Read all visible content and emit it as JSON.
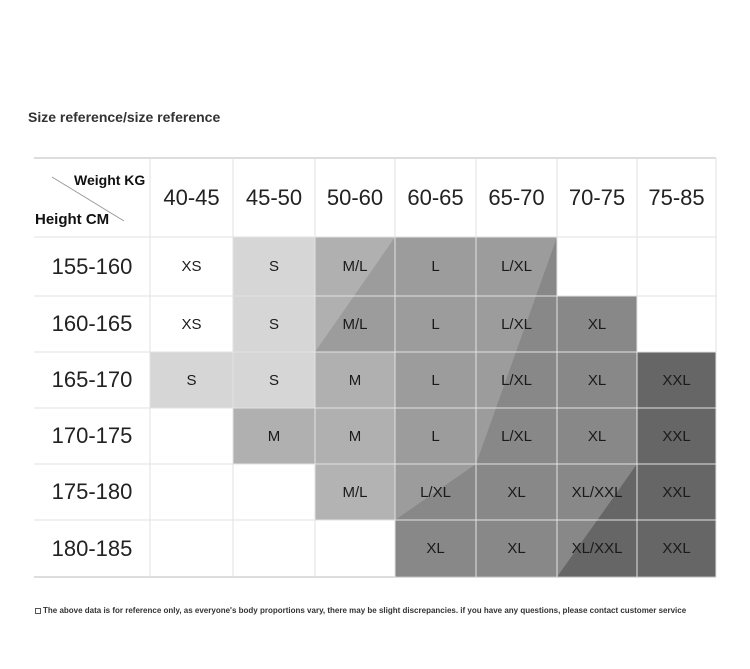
{
  "title": "Size reference/size reference",
  "table": {
    "corner": {
      "top": "Weight KG",
      "bottom": "Height CM"
    },
    "columns": [
      "40-45",
      "45-50",
      "50-60",
      "60-65",
      "65-70",
      "70-75",
      "75-85"
    ],
    "rows": [
      {
        "height": "155-160",
        "cells": [
          "XS",
          "S",
          "M/L",
          "L",
          "L/XL",
          null,
          null
        ]
      },
      {
        "height": "160-165",
        "cells": [
          "XS",
          "S",
          "M/L",
          "L",
          "L/XL",
          "XL",
          null
        ]
      },
      {
        "height": "165-170",
        "cells": [
          "S",
          "S",
          "M",
          "L",
          "L/XL",
          "XL",
          "XXL"
        ]
      },
      {
        "height": "170-175",
        "cells": [
          null,
          "M",
          "M",
          "L",
          "L/XL",
          "XL",
          "XXL"
        ]
      },
      {
        "height": "175-180",
        "cells": [
          null,
          null,
          "M/L",
          "L/XL",
          "XL",
          "XL/XXL",
          "XXL"
        ]
      },
      {
        "height": "180-185",
        "cells": [
          null,
          null,
          null,
          "XL",
          "XL",
          "XL/XXL",
          "XXL"
        ]
      }
    ]
  },
  "footnote": "The above data is for reference only, as everyone's body proportions vary, there may be slight discrepancies. if you have any questions, please contact customer service"
}
